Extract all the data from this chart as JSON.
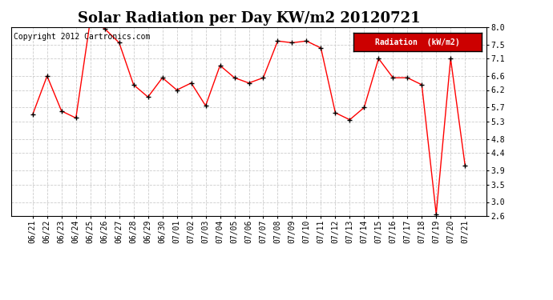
{
  "title": "Solar Radiation per Day KW/m2 20120721",
  "copyright": "Copyright 2012 Cartronics.com",
  "legend_label": "Radiation  (kW/m2)",
  "dates": [
    "06/21",
    "06/22",
    "06/23",
    "06/24",
    "06/25",
    "06/26",
    "06/27",
    "06/28",
    "06/29",
    "06/30",
    "07/01",
    "07/02",
    "07/03",
    "07/04",
    "07/05",
    "07/06",
    "07/07",
    "07/08",
    "07/09",
    "07/10",
    "07/11",
    "07/12",
    "07/13",
    "07/14",
    "07/15",
    "07/16",
    "07/17",
    "07/18",
    "07/19",
    "07/20",
    "07/21"
  ],
  "values": [
    5.5,
    6.6,
    5.6,
    5.4,
    8.2,
    7.95,
    7.55,
    6.35,
    6.0,
    6.55,
    6.2,
    6.4,
    5.75,
    6.9,
    6.55,
    6.4,
    6.55,
    7.6,
    7.55,
    7.6,
    7.4,
    5.55,
    5.35,
    5.7,
    7.1,
    6.55,
    6.55,
    6.35,
    2.65,
    7.1,
    4.05
  ],
  "ylim": [
    2.6,
    8.0
  ],
  "yticks": [
    2.6,
    3.0,
    3.5,
    3.9,
    4.4,
    4.8,
    5.3,
    5.7,
    6.2,
    6.6,
    7.1,
    7.5,
    8.0
  ],
  "line_color": "red",
  "marker_color": "black",
  "bg_color": "#ffffff",
  "grid_color": "#cccccc",
  "title_fontsize": 13,
  "legend_bg": "#cc0000",
  "legend_text_color": "#ffffff",
  "copyright_fontsize": 7,
  "tick_fontsize": 7,
  "ytick_fontsize": 7
}
